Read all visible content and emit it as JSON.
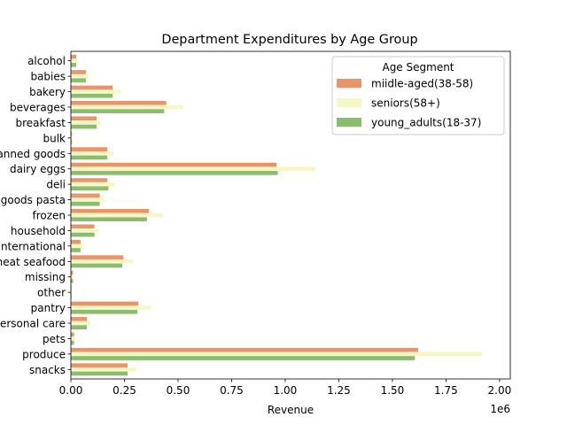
{
  "chart_data": {
    "type": "bar",
    "orientation": "horizontal",
    "title": "Department Expenditures by Age Group",
    "xlabel": "Revenue",
    "ylabel": "",
    "x_scale_label": "1e6",
    "xlim": [
      0,
      2050000
    ],
    "xticks": [
      0,
      250000,
      500000,
      750000,
      1000000,
      1250000,
      1500000,
      1750000,
      2000000
    ],
    "xtick_labels": [
      "0.00",
      "0.25",
      "0.50",
      "0.75",
      "1.00",
      "1.25",
      "1.50",
      "1.75",
      "2.00"
    ],
    "categories": [
      "alcohol",
      "babies",
      "bakery",
      "beverages",
      "breakfast",
      "bulk",
      "canned goods",
      "dairy eggs",
      "deli",
      "dry goods pasta",
      "frozen",
      "household",
      "international",
      "meat seafood",
      "missing",
      "other",
      "pantry",
      "personal care",
      "pets",
      "produce",
      "snacks"
    ],
    "legend": {
      "title": "Age Segment",
      "placement": "upper-right"
    },
    "series": [
      {
        "name": "miidle-aged(38-58)",
        "color": "#e8956a",
        "values": [
          25000,
          70000,
          195000,
          445000,
          120000,
          5000,
          170000,
          960000,
          170000,
          135000,
          365000,
          110000,
          45000,
          245000,
          10000,
          3000,
          315000,
          75000,
          15000,
          1620000,
          265000
        ]
      },
      {
        "name": "seniors(58+)",
        "color": "#f7f7c6",
        "values": [
          30000,
          80000,
          230000,
          525000,
          140000,
          6000,
          200000,
          1140000,
          205000,
          155000,
          430000,
          130000,
          55000,
          290000,
          12000,
          4000,
          375000,
          90000,
          18000,
          1920000,
          305000
        ]
      },
      {
        "name": "young_adults(18-37)",
        "color": "#8bbd6e",
        "values": [
          25000,
          70000,
          195000,
          435000,
          120000,
          5000,
          170000,
          965000,
          175000,
          135000,
          355000,
          110000,
          45000,
          240000,
          10000,
          3000,
          310000,
          75000,
          15000,
          1605000,
          265000
        ]
      }
    ]
  }
}
